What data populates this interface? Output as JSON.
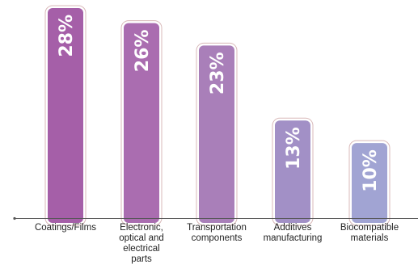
{
  "chart_data": {
    "type": "bar",
    "categories": [
      [
        "Coatings/Films"
      ],
      [
        "Electronic,",
        "optical and",
        "electrical",
        "parts"
      ],
      [
        "Transportation",
        "components"
      ],
      [
        "Additives",
        "manufacturing"
      ],
      [
        "Biocompatible",
        "materials"
      ]
    ],
    "values": [
      28,
      26,
      23,
      13,
      10
    ],
    "value_labels": [
      "28%",
      "26%",
      "23%",
      "13%",
      "10%"
    ],
    "ylim": [
      0,
      30
    ],
    "grid": false,
    "bar_colors": [
      "#a55fa8",
      "#aa6db0",
      "#a97fb9",
      "#a290c6",
      "#a1a4d3"
    ],
    "bar_outline_color": "#d8b8b8",
    "axis_color": "#555555"
  }
}
